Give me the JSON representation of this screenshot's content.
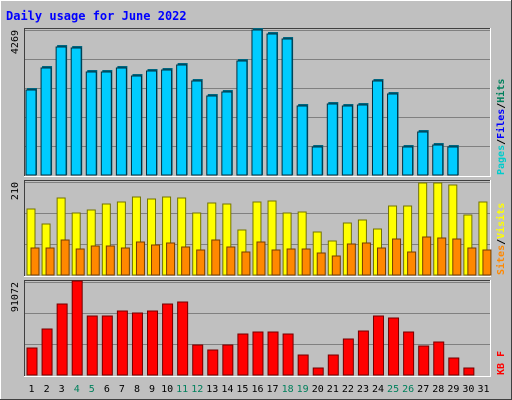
{
  "chart_data": {
    "type": "bar",
    "title": "Daily usage for June 2022",
    "categories": [
      "1",
      "2",
      "3",
      "4",
      "5",
      "6",
      "7",
      "8",
      "9",
      "10",
      "11",
      "12",
      "13",
      "14",
      "15",
      "16",
      "17",
      "18",
      "19",
      "20",
      "21",
      "22",
      "23",
      "24",
      "25",
      "26",
      "27",
      "28",
      "29",
      "30",
      "31"
    ],
    "weekend_days": [
      "4",
      "5",
      "11",
      "12",
      "18",
      "19",
      "25",
      "26"
    ],
    "panels": [
      {
        "id": "hits-files",
        "max_label": "4269",
        "ymax": 4269,
        "axis_label_parts": [
          "Pages",
          "/",
          "Files",
          "/",
          "Hits"
        ],
        "series": [
          {
            "name": "Hits",
            "color": "#00ccff",
            "values": [
              2500,
              3150,
              3780,
              3740,
              3020,
              3020,
              3140,
              2920,
              3060,
              3100,
              3240,
              2780,
              2330,
              2440,
              3360,
              4260,
              4140,
              4000,
              2040,
              820,
              2100,
              2030,
              2070,
              2780,
              2380,
              820,
              1280,
              880,
              820,
              null,
              null
            ]
          },
          {
            "name": "Files",
            "color": "#0000ff",
            "values": [
              null,
              null,
              null,
              null,
              null,
              null,
              null,
              null,
              null,
              null,
              null,
              null,
              null,
              null,
              null,
              null,
              null,
              null,
              null,
              null,
              null,
              null,
              null,
              null,
              null,
              null,
              null,
              null,
              null,
              null,
              null
            ]
          },
          {
            "name": "Pages",
            "color": "#00cccc",
            "values": [
              null,
              null,
              null,
              null,
              null,
              null,
              null,
              null,
              null,
              null,
              null,
              null,
              null,
              null,
              null,
              null,
              null,
              null,
              null,
              null,
              null,
              null,
              null,
              null,
              null,
              null,
              null,
              null,
              null,
              null,
              null
            ]
          }
        ]
      },
      {
        "id": "visits-sites",
        "max_label": "210",
        "ymax": 210,
        "axis_label_parts": [
          "Sites",
          "/",
          "Visits"
        ],
        "series": [
          {
            "name": "Visits",
            "color": "#ffff00",
            "values": [
              148,
              116,
              174,
              141,
              146,
              160,
              164,
              176,
              172,
              176,
              174,
              140,
              162,
              161,
              102,
              164,
              166,
              140,
              142,
              97,
              76,
              117,
              124,
              103,
              156,
              156,
              207,
              208,
              204,
              136,
              165
            ]
          },
          {
            "name": "Sites",
            "color": "#ff8800",
            "values": [
              62,
              62,
              80,
              58,
              66,
              66,
              62,
              74,
              68,
              72,
              64,
              56,
              80,
              64,
              52,
              74,
              56,
              58,
              58,
              50,
              44,
              70,
              72,
              62,
              81,
              52,
              86,
              84,
              82,
              60,
              56
            ]
          }
        ]
      },
      {
        "id": "kbytes",
        "max_label": "91072",
        "ymax": 91072,
        "axis_label_parts": [
          "KB",
          "F"
        ],
        "series": [
          {
            "name": "KBytes",
            "color": "#ff0000",
            "values": [
              26500,
              45500,
              70000,
              92000,
              58000,
              58000,
              63000,
              61000,
              63000,
              70000,
              71000,
              29000,
              24000,
              29000,
              40000,
              42000,
              42000,
              40000,
              20000,
              7000,
              20000,
              35000,
              43000,
              58000,
              56000,
              42000,
              28000,
              32000,
              17000,
              7000,
              null
            ]
          }
        ]
      }
    ],
    "colors": {
      "background": "#c0c0c0",
      "plot_background": "#c0c0c0",
      "grid": "#808080",
      "title": "#0000ff",
      "tick_label": "#000000",
      "weekend_tick_label": "#00805c"
    }
  }
}
